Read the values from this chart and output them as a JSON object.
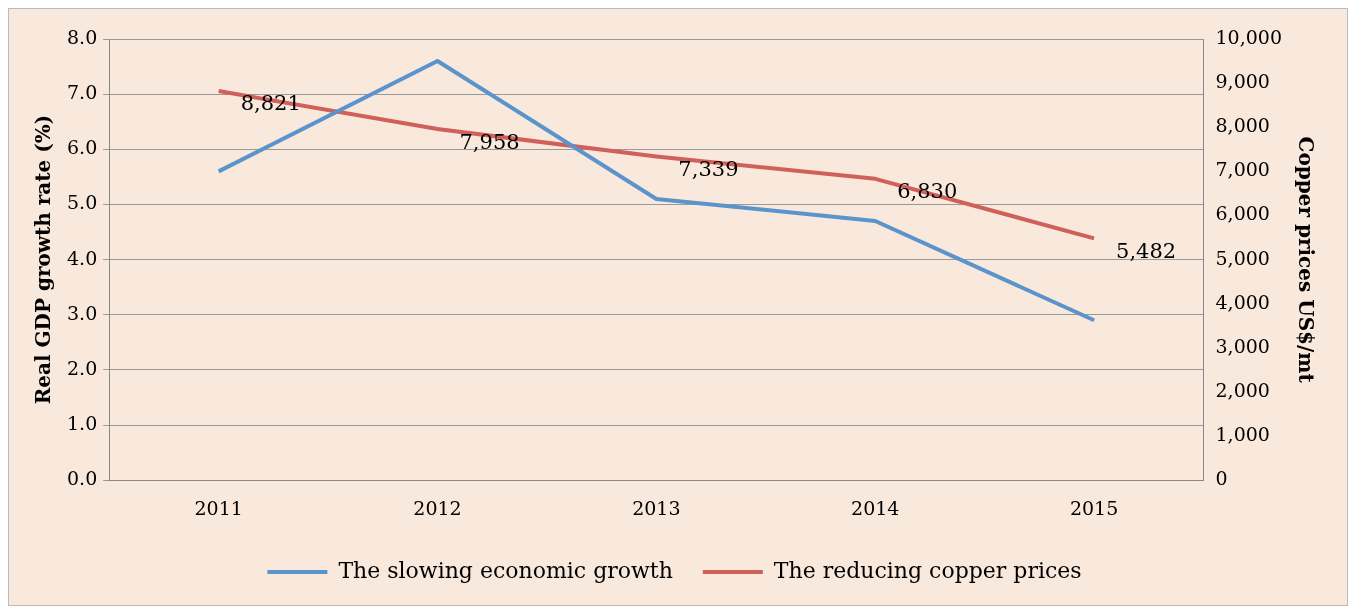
{
  "chart_data": {
    "type": "line",
    "ylabel": "Real GDP growth rate (%)",
    "y2label": "Copper prices US$/mt",
    "categories": [
      "2011",
      "2012",
      "2013",
      "2014",
      "2015"
    ],
    "series": [
      {
        "name": "The slowing economic growth",
        "color": "#5b93cb",
        "values": [
          5.6,
          7.6,
          5.1,
          4.7,
          2.9
        ]
      },
      {
        "name": "The reducing copper prices",
        "color": "#d0605a",
        "values": [
          8821,
          7958,
          7339,
          6830,
          5482
        ],
        "axis": "y2",
        "value_labels": [
          "8,821",
          "7,958",
          "7,339",
          "6,830",
          "5,482"
        ]
      }
    ],
    "ylim": [
      0,
      8
    ],
    "yticks": [
      {
        "value": 0,
        "label": "0.0"
      },
      {
        "value": 1,
        "label": "1.0"
      },
      {
        "value": 2,
        "label": "2.0"
      },
      {
        "value": 3,
        "label": "3.0"
      },
      {
        "value": 4,
        "label": "4.0"
      },
      {
        "value": 5,
        "label": "5.0"
      },
      {
        "value": 6,
        "label": "6.0"
      },
      {
        "value": 7,
        "label": "7.0"
      },
      {
        "value": 8,
        "label": "8.0"
      }
    ],
    "y2lim": [
      0,
      10000
    ],
    "y2ticks": [
      0,
      {
        "value": 1000,
        "label": "1,000"
      },
      {
        "value": 2000,
        "label": "2,000"
      },
      {
        "value": 3000,
        "label": "3,000"
      },
      {
        "value": 4000,
        "label": "4,000"
      },
      {
        "value": 5000,
        "label": "5,000"
      },
      {
        "value": 6000,
        "label": "6,000"
      },
      {
        "value": 7000,
        "label": "7,000"
      },
      {
        "value": 8000,
        "label": "8,000"
      },
      {
        "value": 9000,
        "label": "9,000"
      },
      {
        "value": 10000,
        "label": "10,000"
      }
    ],
    "grid": "y",
    "legend": "bottom",
    "marker": "none",
    "line_style": "solid"
  }
}
